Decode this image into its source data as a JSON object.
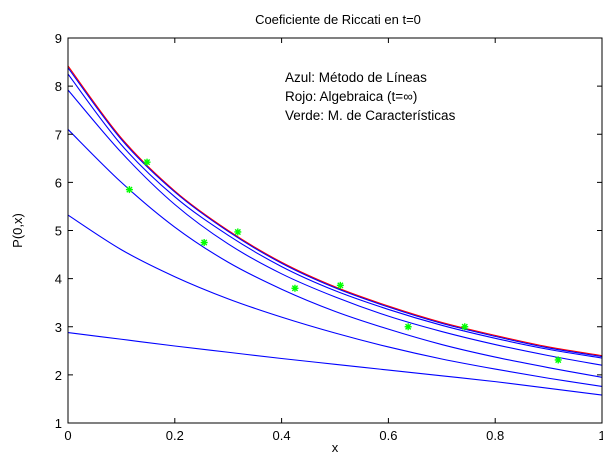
{
  "chart_data": {
    "type": "line",
    "title": "Coeficiente de Riccati en t=0",
    "xlabel": "x",
    "ylabel": "P(0,x)",
    "xlim": [
      0,
      1
    ],
    "ylim": [
      1,
      9
    ],
    "xticks": [
      0,
      0.2,
      0.4,
      0.6,
      0.8,
      1
    ],
    "xtick_labels": [
      "0",
      "0.2",
      "0.4",
      "0.6",
      "0.8",
      "1"
    ],
    "yticks": [
      1,
      2,
      3,
      4,
      5,
      6,
      7,
      8,
      9
    ],
    "ytick_labels": [
      "1",
      "2",
      "3",
      "4",
      "5",
      "6",
      "7",
      "8",
      "9"
    ],
    "grid": false,
    "annotations": [
      "Azul: Método de Líneas",
      "Rojo: Algebraica (t=∞)",
      "Verde: M. de Características"
    ],
    "colors": {
      "blue": "#0000ff",
      "red": "#ff0000",
      "green": "#00ff00"
    },
    "series": [
      {
        "color": "#ff0000",
        "style": "line",
        "x": [
          0,
          0.1,
          0.2,
          0.3,
          0.4,
          0.5,
          0.6,
          0.7,
          0.8,
          0.9,
          1.0
        ],
        "values": [
          8.42,
          6.92,
          5.82,
          5.0,
          4.34,
          3.83,
          3.43,
          3.09,
          2.82,
          2.58,
          2.4
        ]
      },
      {
        "color": "#0000ff",
        "style": "line",
        "x": [
          0,
          0.1,
          0.2,
          0.3,
          0.4,
          0.5,
          0.6,
          0.7,
          0.8,
          0.9,
          1.0
        ],
        "values": [
          8.38,
          6.89,
          5.8,
          4.98,
          4.32,
          3.81,
          3.41,
          3.07,
          2.8,
          2.56,
          2.38
        ]
      },
      {
        "color": "#0000ff",
        "style": "line",
        "x": [
          0,
          0.1,
          0.2,
          0.3,
          0.4,
          0.5,
          0.6,
          0.7,
          0.8,
          0.9,
          1.0
        ],
        "values": [
          8.25,
          6.78,
          5.7,
          4.9,
          4.25,
          3.75,
          3.36,
          3.03,
          2.76,
          2.53,
          2.35
        ]
      },
      {
        "color": "#0000ff",
        "style": "line",
        "x": [
          0,
          0.1,
          0.2,
          0.3,
          0.4,
          0.5,
          0.6,
          0.7,
          0.8,
          0.9,
          1.0
        ],
        "values": [
          7.92,
          6.62,
          5.54,
          4.72,
          4.1,
          3.62,
          3.22,
          2.9,
          2.63,
          2.4,
          2.2
        ]
      },
      {
        "color": "#0000ff",
        "style": "line",
        "x": [
          0,
          0.1,
          0.2,
          0.3,
          0.4,
          0.5,
          0.6,
          0.7,
          0.8,
          0.9,
          1.0
        ],
        "values": [
          7.1,
          6.0,
          5.07,
          4.34,
          3.78,
          3.32,
          2.95,
          2.63,
          2.37,
          2.15,
          1.95
        ]
      },
      {
        "color": "#0000ff",
        "style": "line",
        "x": [
          0,
          0.1,
          0.2,
          0.3,
          0.4,
          0.5,
          0.6,
          0.7,
          0.8,
          0.9,
          1.0
        ],
        "values": [
          5.32,
          4.6,
          4.04,
          3.58,
          3.2,
          2.87,
          2.58,
          2.33,
          2.12,
          1.93,
          1.76
        ]
      },
      {
        "color": "#0000ff",
        "style": "line",
        "x": [
          0,
          0.1,
          0.2,
          0.3,
          0.4,
          0.5,
          0.6,
          0.7,
          0.8,
          0.9,
          1.0
        ],
        "values": [
          2.88,
          2.74,
          2.6,
          2.47,
          2.34,
          2.22,
          2.1,
          1.98,
          1.86,
          1.72,
          1.58
        ]
      },
      {
        "color": "#00ff00",
        "style": "markers",
        "x": [
          0.115,
          0.148,
          0.255,
          0.318,
          0.425,
          0.51,
          0.637,
          0.743,
          0.918
        ],
        "values": [
          5.85,
          6.42,
          4.75,
          4.97,
          3.8,
          3.86,
          3.0,
          3.0,
          2.31
        ]
      }
    ]
  }
}
